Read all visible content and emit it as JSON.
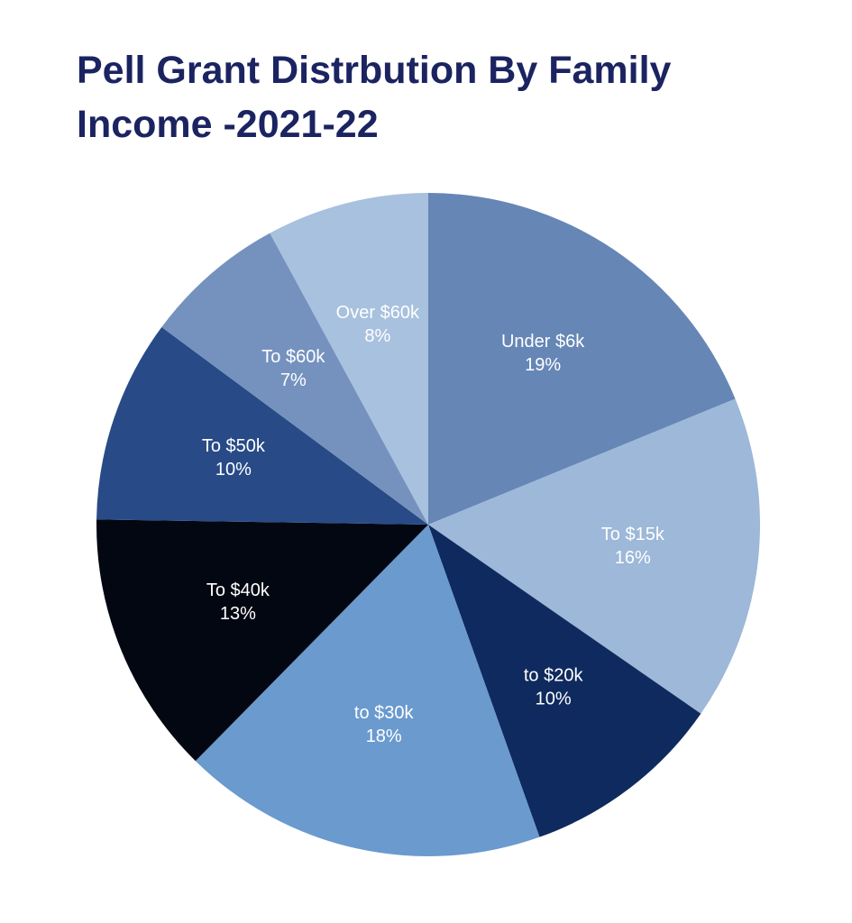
{
  "chart_data": {
    "type": "pie",
    "title": "Pell Grant Distrbution By Family Income -2021-22",
    "categories": [
      "Under $6k",
      "To $15k",
      "to $20k",
      "to $30k",
      "To $40k",
      "To $50k",
      "To $60k",
      "Over $60k"
    ],
    "values": [
      19,
      16,
      10,
      18,
      13,
      10,
      7,
      8
    ],
    "value_labels": [
      "19%",
      "16%",
      "10%",
      "18%",
      "13%",
      "10%",
      "7%",
      "8%"
    ],
    "colors": [
      "#6686b6",
      "#9db8d8",
      "#0f2a5e",
      "#6a9ace",
      "#030712",
      "#284b87",
      "#7592bf",
      "#a8c1de"
    ]
  }
}
